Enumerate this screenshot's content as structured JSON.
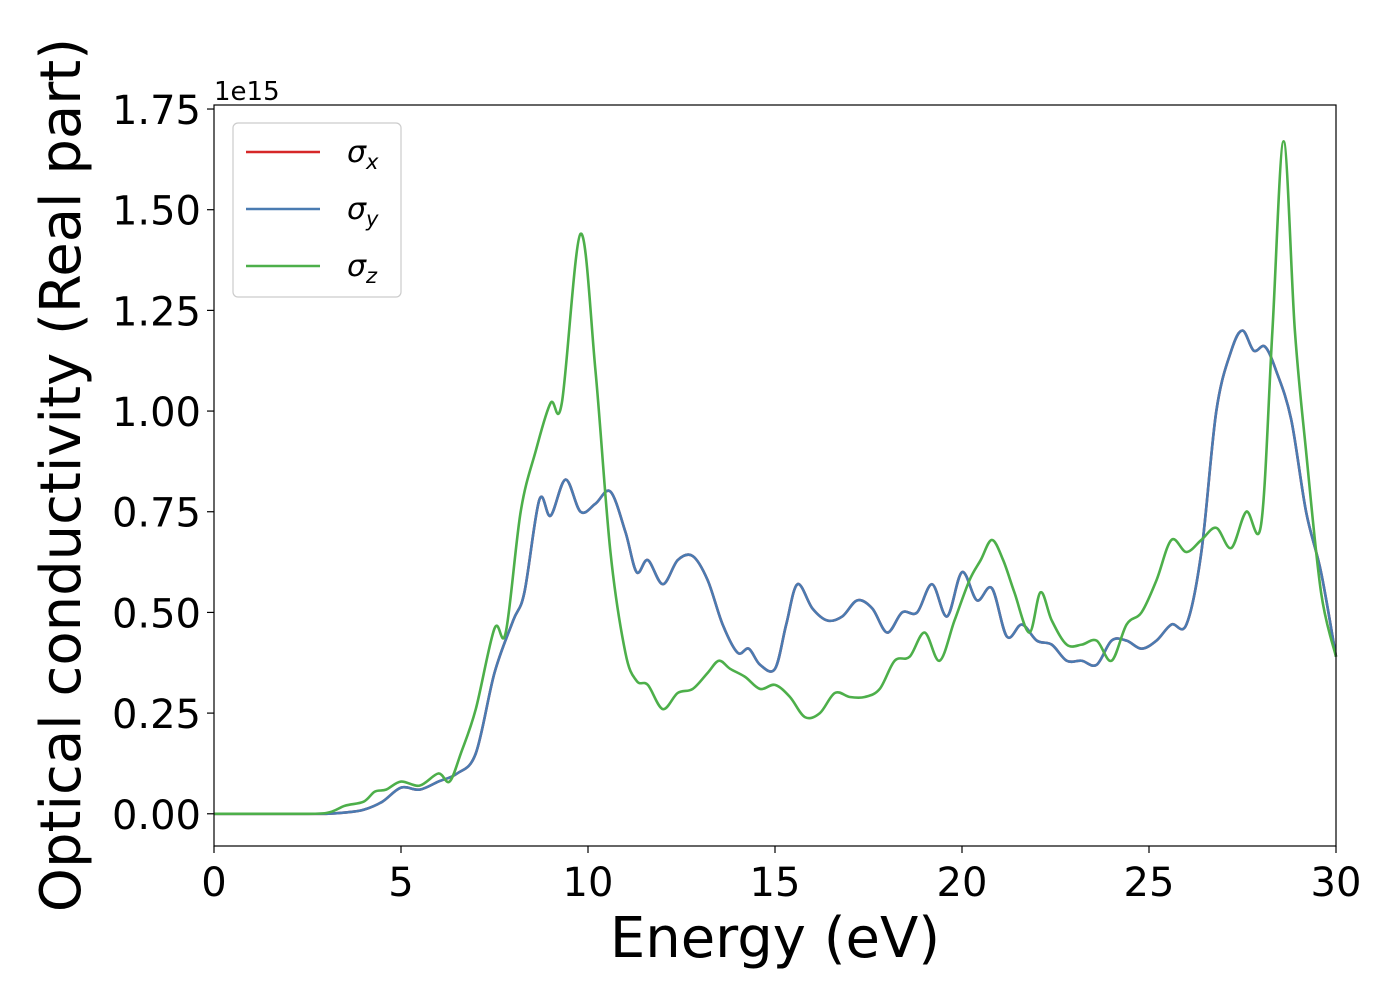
{
  "chart_data": {
    "type": "line",
    "title": "",
    "xlabel": "Energy (eV)",
    "ylabel": "Optical conductivity (Real part)",
    "xlim": [
      0,
      30
    ],
    "ylim": [
      -0.08,
      1.76
    ],
    "y_offset_text": "1e15",
    "xticks": [
      0,
      5,
      10,
      15,
      20,
      25,
      30
    ],
    "xtick_labels": [
      "0",
      "5",
      "10",
      "15",
      "20",
      "25",
      "30"
    ],
    "yticks": [
      0.0,
      0.25,
      0.5,
      0.75,
      1.0,
      1.25,
      1.5,
      1.75
    ],
    "ytick_labels": [
      "0.00",
      "0.25",
      "0.50",
      "0.75",
      "1.00",
      "1.25",
      "1.50",
      "1.75"
    ],
    "grid": false,
    "legend_position": "top-left",
    "series": [
      {
        "name": "σx",
        "legend_symbol": "σ",
        "legend_sub": "x",
        "color": "#d62728",
        "x": [
          0,
          1,
          2,
          3,
          3.5,
          4,
          4.5,
          5,
          5.5,
          6,
          6.5,
          7,
          7.5,
          8,
          8.3,
          8.7,
          9.0,
          9.4,
          9.8,
          10.2,
          10.6,
          11.0,
          11.3,
          11.6,
          12.0,
          12.4,
          12.8,
          13.2,
          13.6,
          14.0,
          14.3,
          14.6,
          15.0,
          15.3,
          15.6,
          16.0,
          16.4,
          16.8,
          17.2,
          17.6,
          18.0,
          18.4,
          18.8,
          19.2,
          19.6,
          20.0,
          20.4,
          20.8,
          21.2,
          21.6,
          22.0,
          22.4,
          22.8,
          23.2,
          23.6,
          24.0,
          24.4,
          24.8,
          25.2,
          25.6,
          26.0,
          26.4,
          26.8,
          27.2,
          27.5,
          27.8,
          28.1,
          28.4,
          28.8,
          29.2,
          29.6,
          30.0
        ],
        "y": [
          0,
          0,
          0,
          0,
          0.003,
          0.01,
          0.03,
          0.065,
          0.06,
          0.08,
          0.1,
          0.15,
          0.35,
          0.48,
          0.55,
          0.78,
          0.74,
          0.83,
          0.75,
          0.77,
          0.8,
          0.7,
          0.6,
          0.63,
          0.57,
          0.63,
          0.64,
          0.58,
          0.47,
          0.4,
          0.41,
          0.37,
          0.36,
          0.47,
          0.57,
          0.51,
          0.48,
          0.49,
          0.53,
          0.51,
          0.45,
          0.5,
          0.5,
          0.57,
          0.49,
          0.6,
          0.53,
          0.56,
          0.44,
          0.47,
          0.43,
          0.42,
          0.38,
          0.38,
          0.37,
          0.43,
          0.43,
          0.41,
          0.43,
          0.47,
          0.47,
          0.65,
          1.0,
          1.15,
          1.2,
          1.15,
          1.16,
          1.1,
          0.98,
          0.75,
          0.6,
          0.39
        ]
      },
      {
        "name": "σy",
        "legend_symbol": "σ",
        "legend_sub": "y",
        "color": "#4a7bb1",
        "x": [
          0,
          1,
          2,
          3,
          3.5,
          4,
          4.5,
          5,
          5.5,
          6,
          6.5,
          7,
          7.5,
          8,
          8.3,
          8.7,
          9.0,
          9.4,
          9.8,
          10.2,
          10.6,
          11.0,
          11.3,
          11.6,
          12.0,
          12.4,
          12.8,
          13.2,
          13.6,
          14.0,
          14.3,
          14.6,
          15.0,
          15.3,
          15.6,
          16.0,
          16.4,
          16.8,
          17.2,
          17.6,
          18.0,
          18.4,
          18.8,
          19.2,
          19.6,
          20.0,
          20.4,
          20.8,
          21.2,
          21.6,
          22.0,
          22.4,
          22.8,
          23.2,
          23.6,
          24.0,
          24.4,
          24.8,
          25.2,
          25.6,
          26.0,
          26.4,
          26.8,
          27.2,
          27.5,
          27.8,
          28.1,
          28.4,
          28.8,
          29.2,
          29.6,
          30.0
        ],
        "y": [
          0,
          0,
          0,
          0,
          0.003,
          0.01,
          0.03,
          0.065,
          0.06,
          0.08,
          0.1,
          0.15,
          0.35,
          0.48,
          0.55,
          0.78,
          0.74,
          0.83,
          0.75,
          0.77,
          0.8,
          0.7,
          0.6,
          0.63,
          0.57,
          0.63,
          0.64,
          0.58,
          0.47,
          0.4,
          0.41,
          0.37,
          0.36,
          0.47,
          0.57,
          0.51,
          0.48,
          0.49,
          0.53,
          0.51,
          0.45,
          0.5,
          0.5,
          0.57,
          0.49,
          0.6,
          0.53,
          0.56,
          0.44,
          0.47,
          0.43,
          0.42,
          0.38,
          0.38,
          0.37,
          0.43,
          0.43,
          0.41,
          0.43,
          0.47,
          0.47,
          0.65,
          1.0,
          1.15,
          1.2,
          1.15,
          1.16,
          1.1,
          0.98,
          0.75,
          0.6,
          0.39
        ]
      },
      {
        "name": "σz",
        "legend_symbol": "σ",
        "legend_sub": "z",
        "color": "#4daf4a",
        "x": [
          0,
          1,
          2,
          3,
          3.5,
          4,
          4.3,
          4.6,
          5,
          5.5,
          6,
          6.3,
          6.6,
          7,
          7.5,
          7.8,
          8.2,
          8.6,
          9.0,
          9.3,
          9.8,
          10.2,
          10.6,
          11.0,
          11.3,
          11.6,
          12.0,
          12.4,
          12.8,
          13.2,
          13.5,
          13.8,
          14.2,
          14.6,
          15.0,
          15.4,
          15.8,
          16.2,
          16.6,
          17.0,
          17.4,
          17.8,
          18.2,
          18.6,
          19.0,
          19.4,
          19.8,
          20.2,
          20.5,
          20.8,
          21.1,
          21.4,
          21.8,
          22.1,
          22.4,
          22.8,
          23.2,
          23.6,
          24.0,
          24.4,
          24.8,
          25.2,
          25.6,
          26.0,
          26.4,
          26.8,
          27.2,
          27.6,
          28.0,
          28.3,
          28.6,
          28.9,
          29.2,
          29.6,
          30.0
        ],
        "y": [
          0,
          0,
          0,
          0.002,
          0.02,
          0.03,
          0.055,
          0.06,
          0.08,
          0.07,
          0.1,
          0.08,
          0.15,
          0.26,
          0.46,
          0.45,
          0.75,
          0.9,
          1.02,
          1.02,
          1.44,
          1.1,
          0.65,
          0.4,
          0.33,
          0.32,
          0.26,
          0.3,
          0.31,
          0.35,
          0.38,
          0.36,
          0.34,
          0.31,
          0.32,
          0.29,
          0.24,
          0.25,
          0.3,
          0.29,
          0.29,
          0.31,
          0.38,
          0.39,
          0.45,
          0.38,
          0.48,
          0.58,
          0.63,
          0.68,
          0.63,
          0.55,
          0.45,
          0.55,
          0.48,
          0.42,
          0.42,
          0.43,
          0.38,
          0.47,
          0.5,
          0.58,
          0.68,
          0.65,
          0.68,
          0.71,
          0.66,
          0.75,
          0.72,
          1.2,
          1.67,
          1.2,
          0.9,
          0.55,
          0.39
        ]
      }
    ]
  }
}
